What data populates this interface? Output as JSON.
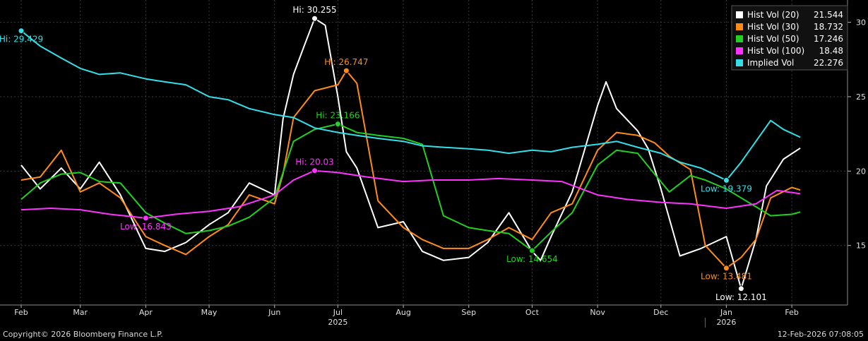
{
  "chart_data": {
    "type": "line",
    "title": "",
    "xlabel": "",
    "ylabel": "",
    "ylim": [
      11,
      31.5
    ],
    "y_ticks": [
      15,
      20,
      25,
      30
    ],
    "grid": true,
    "legend_position": "top-right",
    "x_month_labels": [
      "Feb",
      "Mar",
      "Apr",
      "May",
      "Jun",
      "Jul",
      "Aug",
      "Sep",
      "Oct",
      "Nov",
      "Dec",
      "Jan",
      "Feb"
    ],
    "x_month_dates": [
      "2025-02-01",
      "2025-03-01",
      "2025-04-01",
      "2025-05-01",
      "2025-06-01",
      "2025-07-01",
      "2025-08-01",
      "2025-09-01",
      "2025-10-01",
      "2025-11-01",
      "2025-12-01",
      "2026-01-01",
      "2026-02-01"
    ],
    "year_labels": [
      {
        "text": "2025",
        "date": "2025-07-01"
      },
      {
        "text": "2026",
        "date": "2026-01-01"
      }
    ],
    "x_range": [
      "2025-02-01",
      "2026-02-12"
    ],
    "series": [
      {
        "name": "Hist Vol (20)",
        "last": "21.544",
        "color": "#ffffff",
        "points": [
          [
            "2025-02-01",
            20.4
          ],
          [
            "2025-02-10",
            18.8
          ],
          [
            "2025-02-20",
            20.2
          ],
          [
            "2025-03-01",
            18.8
          ],
          [
            "2025-03-10",
            20.6
          ],
          [
            "2025-03-20",
            18.4
          ],
          [
            "2025-04-01",
            14.8
          ],
          [
            "2025-04-10",
            14.6
          ],
          [
            "2025-04-20",
            15.2
          ],
          [
            "2025-05-01",
            16.4
          ],
          [
            "2025-05-10",
            17.2
          ],
          [
            "2025-05-20",
            19.2
          ],
          [
            "2025-06-01",
            18.4
          ],
          [
            "2025-06-05",
            23.5
          ],
          [
            "2025-06-10",
            26.5
          ],
          [
            "2025-06-15",
            28.4
          ],
          [
            "2025-06-20",
            30.255
          ],
          [
            "2025-06-25",
            29.8
          ],
          [
            "2025-07-01",
            25.0
          ],
          [
            "2025-07-05",
            21.3
          ],
          [
            "2025-07-10",
            20.2
          ],
          [
            "2025-07-20",
            16.2
          ],
          [
            "2025-08-01",
            16.6
          ],
          [
            "2025-08-10",
            14.6
          ],
          [
            "2025-08-20",
            14.0
          ],
          [
            "2025-09-01",
            14.2
          ],
          [
            "2025-09-10",
            15.2
          ],
          [
            "2025-09-20",
            17.2
          ],
          [
            "2025-10-01",
            14.6
          ],
          [
            "2025-10-05",
            14.0
          ],
          [
            "2025-10-10",
            15.6
          ],
          [
            "2025-10-20",
            18.6
          ],
          [
            "2025-11-01",
            24.4
          ],
          [
            "2025-11-05",
            26.0
          ],
          [
            "2025-11-10",
            24.2
          ],
          [
            "2025-11-20",
            22.7
          ],
          [
            "2025-11-25",
            21.5
          ],
          [
            "2025-12-01",
            18.8
          ],
          [
            "2025-12-10",
            14.3
          ],
          [
            "2025-12-20",
            14.8
          ],
          [
            "2026-01-01",
            15.6
          ],
          [
            "2026-01-08",
            12.101
          ],
          [
            "2026-01-15",
            15.4
          ],
          [
            "2026-01-20",
            19.0
          ],
          [
            "2026-01-28",
            20.8
          ],
          [
            "2026-02-05",
            21.544
          ]
        ]
      },
      {
        "name": "Hist Vol (30)",
        "last": "18.732",
        "color": "#ff8c1a",
        "points": [
          [
            "2025-02-01",
            19.4
          ],
          [
            "2025-02-10",
            19.6
          ],
          [
            "2025-02-20",
            21.4
          ],
          [
            "2025-03-01",
            18.6
          ],
          [
            "2025-03-10",
            19.2
          ],
          [
            "2025-03-20",
            18.2
          ],
          [
            "2025-04-01",
            15.6
          ],
          [
            "2025-04-10",
            15.0
          ],
          [
            "2025-04-20",
            14.4
          ],
          [
            "2025-05-01",
            15.6
          ],
          [
            "2025-05-10",
            16.4
          ],
          [
            "2025-05-20",
            18.4
          ],
          [
            "2025-06-01",
            17.8
          ],
          [
            "2025-06-05",
            19.8
          ],
          [
            "2025-06-10",
            23.6
          ],
          [
            "2025-06-20",
            25.4
          ],
          [
            "2025-07-01",
            25.8
          ],
          [
            "2025-07-05",
            26.747
          ],
          [
            "2025-07-10",
            25.9
          ],
          [
            "2025-07-20",
            18.0
          ],
          [
            "2025-08-01",
            16.2
          ],
          [
            "2025-08-10",
            15.4
          ],
          [
            "2025-08-20",
            14.8
          ],
          [
            "2025-09-01",
            14.8
          ],
          [
            "2025-09-10",
            15.4
          ],
          [
            "2025-09-20",
            16.2
          ],
          [
            "2025-10-01",
            15.4
          ],
          [
            "2025-10-10",
            17.2
          ],
          [
            "2025-10-20",
            17.8
          ],
          [
            "2025-11-01",
            21.4
          ],
          [
            "2025-11-10",
            22.6
          ],
          [
            "2025-11-20",
            22.4
          ],
          [
            "2025-11-28",
            21.9
          ],
          [
            "2025-12-05",
            21.0
          ],
          [
            "2025-12-15",
            20.1
          ],
          [
            "2025-12-22",
            15.0
          ],
          [
            "2026-01-01",
            13.481
          ],
          [
            "2026-01-08",
            14.2
          ],
          [
            "2026-01-15",
            15.4
          ],
          [
            "2026-01-22",
            18.2
          ],
          [
            "2026-02-01",
            18.9
          ],
          [
            "2026-02-05",
            18.732
          ]
        ]
      },
      {
        "name": "Hist Vol (50)",
        "last": "17.246",
        "color": "#22d022",
        "points": [
          [
            "2025-02-01",
            18.1
          ],
          [
            "2025-02-10",
            19.2
          ],
          [
            "2025-02-20",
            19.8
          ],
          [
            "2025-03-01",
            19.9
          ],
          [
            "2025-03-10",
            19.3
          ],
          [
            "2025-03-20",
            19.2
          ],
          [
            "2025-04-01",
            17.2
          ],
          [
            "2025-04-10",
            16.5
          ],
          [
            "2025-04-20",
            15.8
          ],
          [
            "2025-05-01",
            16.0
          ],
          [
            "2025-05-10",
            16.3
          ],
          [
            "2025-05-20",
            16.9
          ],
          [
            "2025-06-01",
            18.2
          ],
          [
            "2025-06-10",
            22.0
          ],
          [
            "2025-06-20",
            22.8
          ],
          [
            "2025-07-01",
            23.166
          ],
          [
            "2025-07-10",
            22.6
          ],
          [
            "2025-07-20",
            22.4
          ],
          [
            "2025-08-01",
            22.2
          ],
          [
            "2025-08-10",
            21.8
          ],
          [
            "2025-08-20",
            17.0
          ],
          [
            "2025-09-01",
            16.2
          ],
          [
            "2025-09-10",
            16.0
          ],
          [
            "2025-09-20",
            15.8
          ],
          [
            "2025-10-01",
            14.654
          ],
          [
            "2025-10-10",
            15.9
          ],
          [
            "2025-10-20",
            17.2
          ],
          [
            "2025-11-01",
            20.4
          ],
          [
            "2025-11-10",
            21.4
          ],
          [
            "2025-11-20",
            21.2
          ],
          [
            "2025-11-28",
            19.8
          ],
          [
            "2025-12-05",
            18.6
          ],
          [
            "2025-12-15",
            19.7
          ],
          [
            "2025-12-22",
            19.4
          ],
          [
            "2026-01-01",
            18.8
          ],
          [
            "2026-01-08",
            18.2
          ],
          [
            "2026-01-15",
            17.6
          ],
          [
            "2026-01-22",
            17.0
          ],
          [
            "2026-02-01",
            17.1
          ],
          [
            "2026-02-05",
            17.246
          ]
        ]
      },
      {
        "name": "Hist Vol (100)",
        "last": "18.48",
        "color": "#ff33ff",
        "points": [
          [
            "2025-02-01",
            17.4
          ],
          [
            "2025-02-15",
            17.5
          ],
          [
            "2025-03-01",
            17.4
          ],
          [
            "2025-03-15",
            17.1
          ],
          [
            "2025-04-01",
            16.843
          ],
          [
            "2025-04-15",
            17.1
          ],
          [
            "2025-05-01",
            17.3
          ],
          [
            "2025-05-15",
            17.6
          ],
          [
            "2025-06-01",
            18.4
          ],
          [
            "2025-06-10",
            19.4
          ],
          [
            "2025-06-20",
            20.03
          ],
          [
            "2025-07-01",
            19.9
          ],
          [
            "2025-07-15",
            19.6
          ],
          [
            "2025-08-01",
            19.3
          ],
          [
            "2025-08-15",
            19.4
          ],
          [
            "2025-09-01",
            19.4
          ],
          [
            "2025-09-15",
            19.5
          ],
          [
            "2025-10-01",
            19.4
          ],
          [
            "2025-10-15",
            19.3
          ],
          [
            "2025-11-01",
            18.4
          ],
          [
            "2025-11-15",
            18.1
          ],
          [
            "2025-12-01",
            17.9
          ],
          [
            "2025-12-15",
            17.8
          ],
          [
            "2026-01-01",
            17.5
          ],
          [
            "2026-01-15",
            17.8
          ],
          [
            "2026-01-25",
            18.7
          ],
          [
            "2026-02-05",
            18.48
          ]
        ]
      },
      {
        "name": "Implied Vol",
        "last": "22.276",
        "color": "#33e0e8",
        "points": [
          [
            "2025-02-01",
            29.429
          ],
          [
            "2025-02-10",
            28.4
          ],
          [
            "2025-02-20",
            27.6
          ],
          [
            "2025-03-01",
            26.9
          ],
          [
            "2025-03-10",
            26.5
          ],
          [
            "2025-03-20",
            26.6
          ],
          [
            "2025-04-01",
            26.2
          ],
          [
            "2025-04-10",
            26.0
          ],
          [
            "2025-04-20",
            25.8
          ],
          [
            "2025-05-01",
            25.0
          ],
          [
            "2025-05-10",
            24.8
          ],
          [
            "2025-05-20",
            24.2
          ],
          [
            "2025-06-01",
            23.8
          ],
          [
            "2025-06-10",
            23.6
          ],
          [
            "2025-06-20",
            22.9
          ],
          [
            "2025-07-01",
            22.6
          ],
          [
            "2025-07-10",
            22.4
          ],
          [
            "2025-07-20",
            22.2
          ],
          [
            "2025-08-01",
            22.0
          ],
          [
            "2025-08-10",
            21.7
          ],
          [
            "2025-08-20",
            21.6
          ],
          [
            "2025-09-01",
            21.5
          ],
          [
            "2025-09-10",
            21.4
          ],
          [
            "2025-09-20",
            21.2
          ],
          [
            "2025-10-01",
            21.4
          ],
          [
            "2025-10-10",
            21.3
          ],
          [
            "2025-10-20",
            21.6
          ],
          [
            "2025-11-01",
            21.8
          ],
          [
            "2025-11-10",
            22.0
          ],
          [
            "2025-11-20",
            21.6
          ],
          [
            "2025-12-01",
            21.2
          ],
          [
            "2025-12-10",
            20.6
          ],
          [
            "2025-12-20",
            20.2
          ],
          [
            "2026-01-01",
            19.379
          ],
          [
            "2026-01-08",
            20.6
          ],
          [
            "2026-01-15",
            22.0
          ],
          [
            "2026-01-22",
            23.4
          ],
          [
            "2026-01-28",
            22.8
          ],
          [
            "2026-02-05",
            22.276
          ]
        ]
      }
    ],
    "annotations": [
      {
        "text": "Hi: 29.429",
        "series": 4,
        "date": "2025-02-01",
        "value": 29.429,
        "pos": "below"
      },
      {
        "text": "Hi: 30.255",
        "series": 0,
        "date": "2025-06-20",
        "value": 30.255,
        "pos": "above"
      },
      {
        "text": "Hi: 26.747",
        "series": 1,
        "date": "2025-07-05",
        "value": 26.747,
        "pos": "above"
      },
      {
        "text": "Hi: 23.166",
        "series": 2,
        "date": "2025-07-01",
        "value": 23.166,
        "pos": "above"
      },
      {
        "text": "Hi: 20.03",
        "series": 3,
        "date": "2025-06-20",
        "value": 20.03,
        "pos": "above"
      },
      {
        "text": "Low: 16.843",
        "series": 3,
        "date": "2025-04-01",
        "value": 16.843,
        "pos": "below"
      },
      {
        "text": "Low: 14.654",
        "series": 2,
        "date": "2025-10-01",
        "value": 14.654,
        "pos": "below"
      },
      {
        "text": "Low: 19.379",
        "series": 4,
        "date": "2026-01-01",
        "value": 19.379,
        "pos": "below"
      },
      {
        "text": "Low: 13.481",
        "series": 1,
        "date": "2026-01-01",
        "value": 13.481,
        "pos": "below"
      },
      {
        "text": "Low: 12.101",
        "series": 0,
        "date": "2026-01-08",
        "value": 12.101,
        "pos": "below"
      }
    ]
  },
  "footer": {
    "copyright": "Copyright© 2026 Bloomberg Finance L.P.",
    "timestamp": "12-Feb-2026 07:08:05"
  }
}
